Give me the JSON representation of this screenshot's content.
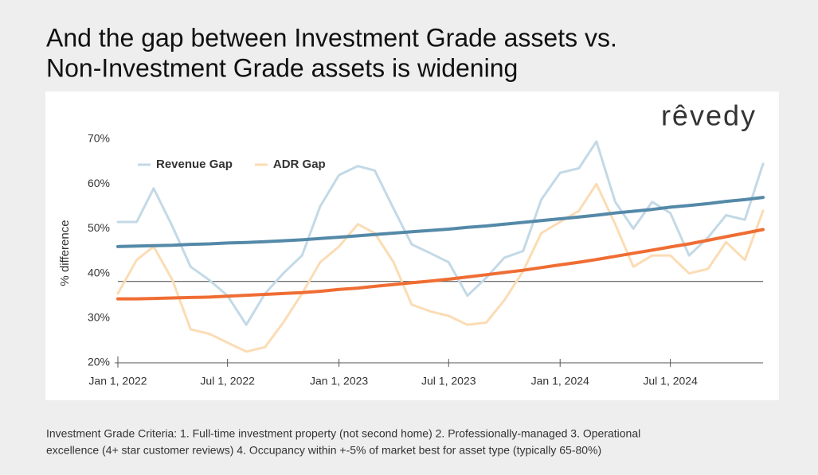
{
  "header": {
    "title_lines": [
      "And the gap between Investment Grade assets vs.",
      "Non-Investment Grade assets is widening"
    ]
  },
  "logo": "rêvedy",
  "chart_data": {
    "type": "line",
    "ylabel": "% difference",
    "x": [
      "2022-01-01",
      "2022-02-01",
      "2022-03-01",
      "2022-04-01",
      "2022-05-01",
      "2022-06-01",
      "2022-07-01",
      "2022-08-01",
      "2022-09-01",
      "2022-10-01",
      "2022-11-01",
      "2022-12-01",
      "2023-01-01",
      "2023-02-01",
      "2023-03-01",
      "2023-04-01",
      "2023-05-01",
      "2023-06-01",
      "2023-07-01",
      "2023-08-01",
      "2023-09-01",
      "2023-10-01",
      "2023-11-01",
      "2023-12-01",
      "2024-01-01",
      "2024-02-01",
      "2024-03-01",
      "2024-04-01",
      "2024-05-01",
      "2024-06-01",
      "2024-07-01",
      "2024-08-01",
      "2024-09-01",
      "2024-10-01",
      "2024-11-01",
      "2024-12-01"
    ],
    "series": [
      {
        "name": "Revenue Gap",
        "color": "#c3d9e6",
        "values": [
          51.5,
          51.5,
          59,
          50.5,
          41.5,
          38.5,
          35,
          28.5,
          35.5,
          40,
          44,
          55,
          62,
          64,
          63,
          54.5,
          46.5,
          44.5,
          42.5,
          35,
          39,
          43.5,
          45,
          56.5,
          62.5,
          63.5,
          69.5,
          56,
          50,
          56,
          53.5,
          44,
          48,
          53,
          52,
          64.5
        ]
      },
      {
        "name": "ADR Gap",
        "color": "#fbdcb4",
        "values": [
          35.5,
          43,
          46,
          38.5,
          27.5,
          26.5,
          24.5,
          22.5,
          23.5,
          29,
          35.5,
          42.5,
          46,
          51,
          49,
          42.5,
          33,
          31.5,
          30.5,
          28.5,
          29,
          34,
          40.5,
          49,
          51.5,
          54,
          60,
          51,
          41.5,
          44,
          44,
          40,
          41,
          47,
          43,
          54
        ]
      }
    ],
    "trendlines": [
      {
        "color": "#5489a8",
        "values": [
          46.0,
          46.1,
          46.2,
          46.3,
          46.5,
          46.6,
          46.8,
          46.9,
          47.1,
          47.3,
          47.5,
          47.8,
          48.1,
          48.4,
          48.7,
          49.0,
          49.3,
          49.6,
          49.9,
          50.3,
          50.6,
          51.0,
          51.4,
          51.8,
          52.2,
          52.6,
          53.0,
          53.5,
          53.9,
          54.3,
          54.8,
          55.2,
          55.6,
          56.1,
          56.5,
          57.0
        ]
      },
      {
        "color": "#ef6d33",
        "values": [
          34.3,
          34.3,
          34.4,
          34.5,
          34.6,
          34.7,
          34.9,
          35.1,
          35.3,
          35.5,
          35.7,
          36.0,
          36.4,
          36.7,
          37.1,
          37.5,
          37.9,
          38.3,
          38.7,
          39.2,
          39.7,
          40.2,
          40.7,
          41.3,
          41.9,
          42.5,
          43.1,
          43.8,
          44.5,
          45.2,
          45.9,
          46.6,
          47.4,
          48.2,
          49.0,
          49.8
        ]
      }
    ],
    "reference_line": 38.2,
    "xlim": [
      "2022-01-01",
      "2024-12-01"
    ],
    "xticks": [
      {
        "value": "2022-01-01",
        "label": "Jan 1, 2022"
      },
      {
        "value": "2022-07-01",
        "label": "Jul 1, 2022"
      },
      {
        "value": "2023-01-01",
        "label": "Jan 1, 2023"
      },
      {
        "value": "2023-07-01",
        "label": "Jul 1, 2023"
      },
      {
        "value": "2024-01-01",
        "label": "Jan 1, 2024"
      },
      {
        "value": "2024-07-01",
        "label": "Jul 1, 2024"
      }
    ],
    "ylim": [
      20,
      70
    ],
    "yticks": [
      {
        "value": 20,
        "label": "20%"
      },
      {
        "value": 30,
        "label": "30%"
      },
      {
        "value": 40,
        "label": "40%"
      },
      {
        "value": 50,
        "label": "50%"
      },
      {
        "value": 60,
        "label": "60%"
      },
      {
        "value": 70,
        "label": "70%"
      }
    ],
    "legend": "top-left",
    "grid": false
  },
  "footer": {
    "lines": [
      "Investment Grade Criteria: 1. Full-time investment property (not second home) 2. Professionally-managed 3. Operational",
      "excellence (4+ star customer reviews) 4. Occupancy within +-5% of market best for asset type (typically 65-80%)"
    ]
  }
}
